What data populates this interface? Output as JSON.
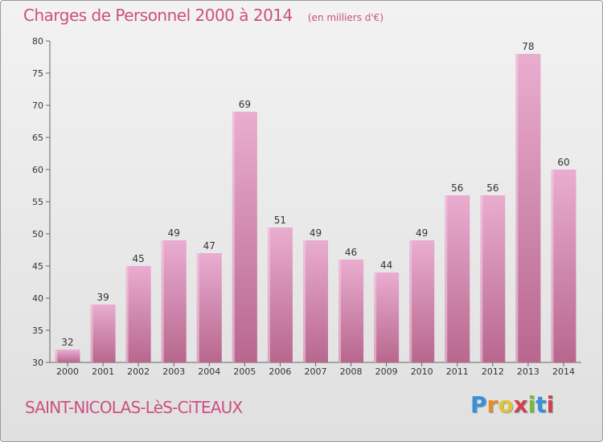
{
  "header": {
    "title": "Charges de Personnel 2000 à 2014",
    "subtitle": "(en milliers d'€)"
  },
  "footer": {
    "location": "SAINT-NICOLAS-LèS-CiTEAUX",
    "brand": [
      "P",
      "r",
      "o",
      "x",
      "i",
      "t",
      "i"
    ]
  },
  "colors": {
    "title": "#ce4f80",
    "bar_top": "#e9add0",
    "bar_bottom": "#b8678e",
    "brand_letters": [
      "#3b8fd6",
      "#e98b2a",
      "#e5c234",
      "#d1414a",
      "#7ab83a",
      "#3b8fd6",
      "#d1414a"
    ]
  },
  "chart_data": {
    "type": "bar",
    "categories": [
      "2000",
      "2001",
      "2002",
      "2003",
      "2004",
      "2005",
      "2006",
      "2007",
      "2008",
      "2009",
      "2010",
      "2011",
      "2012",
      "2013",
      "2014"
    ],
    "values": [
      32,
      39,
      45,
      49,
      47,
      69,
      51,
      49,
      46,
      44,
      49,
      56,
      56,
      78,
      60
    ],
    "ylim": [
      30,
      80
    ],
    "yticks": [
      30,
      35,
      40,
      45,
      50,
      55,
      60,
      65,
      70,
      75,
      80
    ],
    "grid": false,
    "show_data_labels": true
  }
}
